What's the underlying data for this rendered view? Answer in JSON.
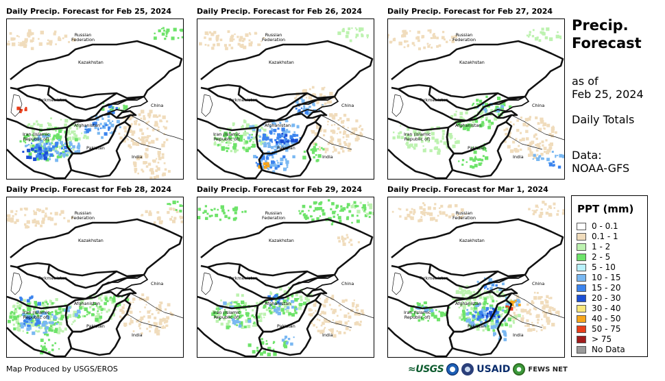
{
  "panels": [
    {
      "title": "Daily Precip. Forecast for Feb 25, 2024"
    },
    {
      "title": "Daily Precip. Forecast for Feb 26, 2024"
    },
    {
      "title": "Daily Precip. Forecast for Feb 27, 2024"
    },
    {
      "title": "Daily Precip. Forecast for Feb 28, 2024"
    },
    {
      "title": "Daily Precip. Forecast for Feb 29, 2024"
    },
    {
      "title": "Daily Precip. Forecast for Mar 1, 2024"
    }
  ],
  "map_labels": {
    "russia": "Russian\nFederation",
    "kazakhstan": "Kazakhstan",
    "turkmenistan": "Turkmenistan",
    "iran": "Iran  (Islamic\nRepublic of)",
    "afghanistan": "Afghanistan",
    "pakistan": "Pakistan",
    "china": "China",
    "india": "India"
  },
  "side": {
    "title_line1": "Precip.",
    "title_line2": "Forecast",
    "as_of_label": "as of",
    "as_of_date": "Feb 25, 2024",
    "totals": "Daily Totals",
    "data_label": "Data:",
    "data_source": "NOAA-GFS"
  },
  "legend": {
    "title": "PPT (mm)",
    "items": [
      {
        "label": "0 - 0.1",
        "color": "#ffffff"
      },
      {
        "label": "0.1 - 1",
        "color": "#f0dcbc"
      },
      {
        "label": "1 - 2",
        "color": "#bdf2b0"
      },
      {
        "label": "2 - 5",
        "color": "#6ee36a"
      },
      {
        "label": "5 - 10",
        "color": "#b9f1fb"
      },
      {
        "label": "10 - 15",
        "color": "#7ab8f2"
      },
      {
        "label": "15 - 20",
        "color": "#3c84ee"
      },
      {
        "label": "20 - 30",
        "color": "#1b4fd6"
      },
      {
        "label": "30 - 40",
        "color": "#f9e77a"
      },
      {
        "label": "40 - 50",
        "color": "#f7a61b"
      },
      {
        "label": "50 - 75",
        "color": "#e93e1a"
      },
      {
        "label": "> 75",
        "color": "#a11c1c"
      },
      {
        "label": "No Data",
        "color": "#9a9a9a"
      }
    ]
  },
  "footer": {
    "credit": "Map Produced by USGS/EROS",
    "logo_usgs": "≈USGS",
    "logo_usaid": "USAID",
    "logo_fews": "FEWS NET"
  }
}
